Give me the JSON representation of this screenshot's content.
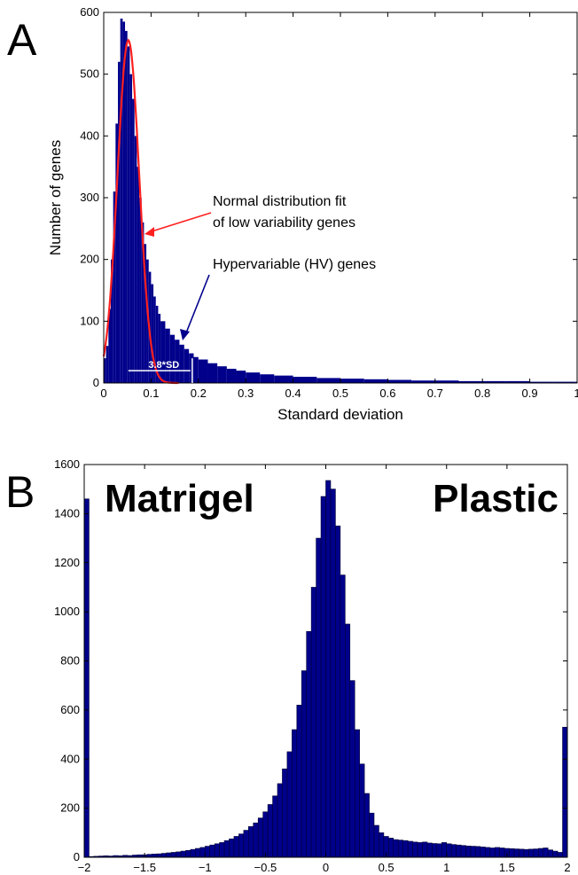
{
  "colors": {
    "bar": "#00008b",
    "fit": "#ff2020",
    "arrow_red": "#ff2020",
    "arrow_blue": "#00008b"
  },
  "chart_data": [
    {
      "panel": "A",
      "type": "bar",
      "title": "",
      "xlabel": "Standard deviation",
      "ylabel": "Number of genes",
      "xlim": [
        0,
        1
      ],
      "ylim": [
        0,
        600
      ],
      "xticks": [
        "0",
        "0.1",
        "0.2",
        "0.3",
        "0.4",
        "0.5",
        "0.6",
        "0.7",
        "0.8",
        "0.9",
        "1"
      ],
      "yticks": [
        "0",
        "100",
        "200",
        "300",
        "400",
        "500",
        "600"
      ],
      "bin_width": 0.0035,
      "histogram": [
        {
          "x": 0.0,
          "y": 40
        },
        {
          "x": 0.005,
          "y": 60
        },
        {
          "x": 0.01,
          "y": 120
        },
        {
          "x": 0.015,
          "y": 200
        },
        {
          "x": 0.02,
          "y": 310
        },
        {
          "x": 0.025,
          "y": 420
        },
        {
          "x": 0.03,
          "y": 520
        },
        {
          "x": 0.035,
          "y": 590
        },
        {
          "x": 0.04,
          "y": 585
        },
        {
          "x": 0.045,
          "y": 570
        },
        {
          "x": 0.05,
          "y": 545
        },
        {
          "x": 0.055,
          "y": 500
        },
        {
          "x": 0.06,
          "y": 460
        },
        {
          "x": 0.065,
          "y": 400
        },
        {
          "x": 0.07,
          "y": 350
        },
        {
          "x": 0.075,
          "y": 300
        },
        {
          "x": 0.08,
          "y": 260
        },
        {
          "x": 0.085,
          "y": 225
        },
        {
          "x": 0.09,
          "y": 200
        },
        {
          "x": 0.095,
          "y": 180
        },
        {
          "x": 0.1,
          "y": 160
        },
        {
          "x": 0.105,
          "y": 140
        },
        {
          "x": 0.11,
          "y": 125
        },
        {
          "x": 0.115,
          "y": 112
        },
        {
          "x": 0.12,
          "y": 100
        },
        {
          "x": 0.13,
          "y": 88
        },
        {
          "x": 0.14,
          "y": 78
        },
        {
          "x": 0.15,
          "y": 70
        },
        {
          "x": 0.16,
          "y": 62
        },
        {
          "x": 0.17,
          "y": 55
        },
        {
          "x": 0.18,
          "y": 48
        },
        {
          "x": 0.19,
          "y": 42
        },
        {
          "x": 0.2,
          "y": 38
        },
        {
          "x": 0.22,
          "y": 32
        },
        {
          "x": 0.24,
          "y": 27
        },
        {
          "x": 0.26,
          "y": 23
        },
        {
          "x": 0.28,
          "y": 20
        },
        {
          "x": 0.3,
          "y": 17
        },
        {
          "x": 0.33,
          "y": 14
        },
        {
          "x": 0.36,
          "y": 12
        },
        {
          "x": 0.4,
          "y": 10
        },
        {
          "x": 0.45,
          "y": 8
        },
        {
          "x": 0.5,
          "y": 7
        },
        {
          "x": 0.55,
          "y": 6
        },
        {
          "x": 0.6,
          "y": 5
        },
        {
          "x": 0.65,
          "y": 4
        },
        {
          "x": 0.7,
          "y": 4
        },
        {
          "x": 0.75,
          "y": 3
        },
        {
          "x": 0.8,
          "y": 3
        },
        {
          "x": 0.85,
          "y": 3
        },
        {
          "x": 0.9,
          "y": 2
        },
        {
          "x": 0.95,
          "y": 2
        },
        {
          "x": 0.995,
          "y": 2
        }
      ],
      "normal_fit": {
        "mean": 0.052,
        "sd": 0.023,
        "peak": 555,
        "xmax": 0.16
      },
      "threshold_x": 0.187,
      "annotations": {
        "fit_line1": "Normal distribution fit",
        "fit_line2": "of low variability genes",
        "hv": "Hypervariable (HV) genes",
        "sd_marker": "3.8*SD"
      }
    },
    {
      "panel": "B",
      "type": "bar",
      "title": "",
      "xlabel": "",
      "ylabel": "",
      "xlim": [
        -2,
        2
      ],
      "ylim": [
        0,
        1600
      ],
      "xticks": [
        "−2",
        "−1.5",
        "−1",
        "−0.5",
        "0",
        "0.5",
        "1",
        "1.5",
        "2"
      ],
      "yticks": [
        "0",
        "200",
        "400",
        "600",
        "800",
        "1000",
        "1200",
        "1400",
        "1600"
      ],
      "bin_width": 0.04,
      "left_label": "Matrigel",
      "right_label": "Plastic",
      "histogram": [
        {
          "x": -1.98,
          "y": 1460
        },
        {
          "x": -1.94,
          "y": 3
        },
        {
          "x": -1.9,
          "y": 4
        },
        {
          "x": -1.86,
          "y": 5
        },
        {
          "x": -1.82,
          "y": 6
        },
        {
          "x": -1.78,
          "y": 5
        },
        {
          "x": -1.74,
          "y": 7
        },
        {
          "x": -1.7,
          "y": 6
        },
        {
          "x": -1.66,
          "y": 8
        },
        {
          "x": -1.62,
          "y": 7
        },
        {
          "x": -1.58,
          "y": 9
        },
        {
          "x": -1.54,
          "y": 10
        },
        {
          "x": -1.5,
          "y": 10
        },
        {
          "x": -1.46,
          "y": 12
        },
        {
          "x": -1.42,
          "y": 13
        },
        {
          "x": -1.38,
          "y": 14
        },
        {
          "x": -1.34,
          "y": 16
        },
        {
          "x": -1.3,
          "y": 18
        },
        {
          "x": -1.26,
          "y": 20
        },
        {
          "x": -1.22,
          "y": 22
        },
        {
          "x": -1.18,
          "y": 25
        },
        {
          "x": -1.14,
          "y": 28
        },
        {
          "x": -1.1,
          "y": 32
        },
        {
          "x": -1.06,
          "y": 36
        },
        {
          "x": -1.02,
          "y": 40
        },
        {
          "x": -0.98,
          "y": 45
        },
        {
          "x": -0.94,
          "y": 50
        },
        {
          "x": -0.9,
          "y": 55
        },
        {
          "x": -0.86,
          "y": 60
        },
        {
          "x": -0.82,
          "y": 68
        },
        {
          "x": -0.78,
          "y": 75
        },
        {
          "x": -0.74,
          "y": 85
        },
        {
          "x": -0.7,
          "y": 95
        },
        {
          "x": -0.66,
          "y": 110
        },
        {
          "x": -0.62,
          "y": 125
        },
        {
          "x": -0.58,
          "y": 140
        },
        {
          "x": -0.54,
          "y": 160
        },
        {
          "x": -0.5,
          "y": 185
        },
        {
          "x": -0.46,
          "y": 215
        },
        {
          "x": -0.42,
          "y": 250
        },
        {
          "x": -0.38,
          "y": 300
        },
        {
          "x": -0.34,
          "y": 360
        },
        {
          "x": -0.3,
          "y": 430
        },
        {
          "x": -0.26,
          "y": 520
        },
        {
          "x": -0.22,
          "y": 620
        },
        {
          "x": -0.18,
          "y": 760
        },
        {
          "x": -0.14,
          "y": 920
        },
        {
          "x": -0.1,
          "y": 1100
        },
        {
          "x": -0.06,
          "y": 1300
        },
        {
          "x": -0.02,
          "y": 1470
        },
        {
          "x": 0.02,
          "y": 1535
        },
        {
          "x": 0.06,
          "y": 1500
        },
        {
          "x": 0.1,
          "y": 1350
        },
        {
          "x": 0.14,
          "y": 1150
        },
        {
          "x": 0.18,
          "y": 950
        },
        {
          "x": 0.22,
          "y": 720
        },
        {
          "x": 0.26,
          "y": 520
        },
        {
          "x": 0.3,
          "y": 380
        },
        {
          "x": 0.34,
          "y": 260
        },
        {
          "x": 0.38,
          "y": 180
        },
        {
          "x": 0.42,
          "y": 130
        },
        {
          "x": 0.46,
          "y": 100
        },
        {
          "x": 0.5,
          "y": 85
        },
        {
          "x": 0.54,
          "y": 78
        },
        {
          "x": 0.58,
          "y": 72
        },
        {
          "x": 0.62,
          "y": 70
        },
        {
          "x": 0.66,
          "y": 68
        },
        {
          "x": 0.7,
          "y": 65
        },
        {
          "x": 0.74,
          "y": 62
        },
        {
          "x": 0.78,
          "y": 60
        },
        {
          "x": 0.82,
          "y": 62
        },
        {
          "x": 0.86,
          "y": 58
        },
        {
          "x": 0.9,
          "y": 56
        },
        {
          "x": 0.94,
          "y": 55
        },
        {
          "x": 0.98,
          "y": 60
        },
        {
          "x": 1.02,
          "y": 55
        },
        {
          "x": 1.06,
          "y": 52
        },
        {
          "x": 1.1,
          "y": 50
        },
        {
          "x": 1.14,
          "y": 48
        },
        {
          "x": 1.18,
          "y": 46
        },
        {
          "x": 1.22,
          "y": 45
        },
        {
          "x": 1.26,
          "y": 44
        },
        {
          "x": 1.3,
          "y": 42
        },
        {
          "x": 1.34,
          "y": 40
        },
        {
          "x": 1.38,
          "y": 38
        },
        {
          "x": 1.42,
          "y": 40
        },
        {
          "x": 1.46,
          "y": 38
        },
        {
          "x": 1.5,
          "y": 36
        },
        {
          "x": 1.54,
          "y": 35
        },
        {
          "x": 1.58,
          "y": 34
        },
        {
          "x": 1.62,
          "y": 33
        },
        {
          "x": 1.66,
          "y": 32
        },
        {
          "x": 1.7,
          "y": 33
        },
        {
          "x": 1.74,
          "y": 34
        },
        {
          "x": 1.78,
          "y": 36
        },
        {
          "x": 1.82,
          "y": 38
        },
        {
          "x": 1.86,
          "y": 30
        },
        {
          "x": 1.9,
          "y": 25
        },
        {
          "x": 1.94,
          "y": 20
        },
        {
          "x": 1.98,
          "y": 530
        }
      ]
    }
  ]
}
